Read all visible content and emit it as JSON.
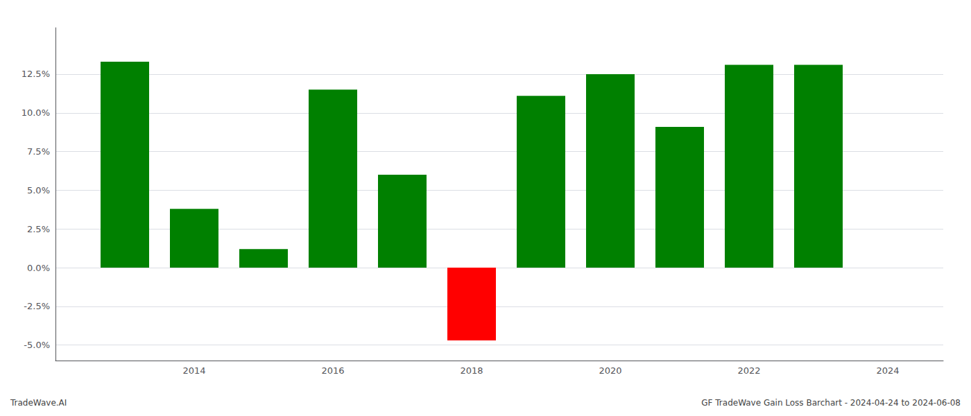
{
  "chart_data": {
    "type": "bar",
    "title": "GF TradeWave Gain Loss Barchart - 2024-04-24 to 2024-06-08",
    "annotations": [
      "TradeWave.AI"
    ],
    "x": [
      2013,
      2014,
      2015,
      2016,
      2017,
      2018,
      2019,
      2020,
      2021,
      2022,
      2023
    ],
    "values": [
      0.133,
      0.038,
      0.012,
      0.115,
      0.06,
      -0.047,
      0.111,
      0.125,
      0.091,
      0.131,
      0.131
    ],
    "colors": [
      "#008000",
      "#008000",
      "#008000",
      "#008000",
      "#008000",
      "#ff0000",
      "#008000",
      "#008000",
      "#008000",
      "#008000",
      "#008000"
    ],
    "xlim": [
      2012.0,
      2024.8
    ],
    "xticks": [
      2014,
      2016,
      2018,
      2020,
      2022,
      2024
    ],
    "ylim": [
      -0.06,
      0.155
    ],
    "yticks": [
      {
        "value": -0.05,
        "label": "-5.0%"
      },
      {
        "value": -0.025,
        "label": "-2.5%"
      },
      {
        "value": 0.0,
        "label": "0.0%"
      },
      {
        "value": 0.025,
        "label": "2.5%"
      },
      {
        "value": 0.05,
        "label": "5.0%"
      },
      {
        "value": 0.075,
        "label": "7.5%"
      },
      {
        "value": 0.1,
        "label": "10.0%"
      },
      {
        "value": 0.125,
        "label": "12.5%"
      }
    ],
    "grid": true
  }
}
